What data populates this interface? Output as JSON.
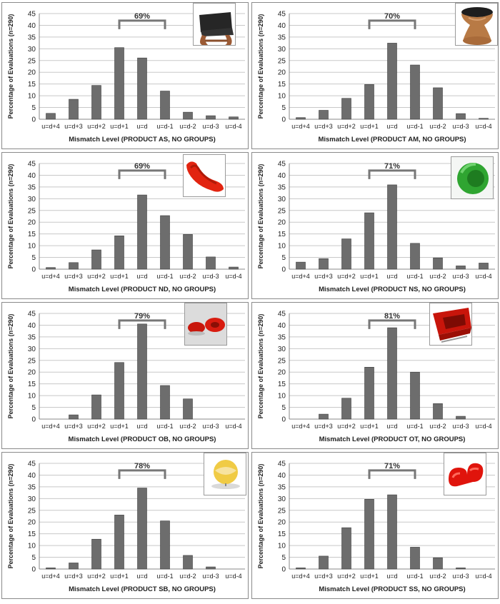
{
  "axis": {
    "ylabel": "Percentage of Evaluations (n=290)",
    "yticks": [
      0,
      5,
      10,
      15,
      20,
      25,
      30,
      35,
      40,
      45
    ],
    "ylim": [
      0,
      45
    ]
  },
  "bar_color": "#6d6d6d",
  "chart_data": [
    {
      "type": "bar",
      "categories": [
        "u=d+4",
        "u=d+3",
        "u=d+2",
        "u=d+1",
        "u=d",
        "u=d-1",
        "u=d-2",
        "u=d-3",
        "u=d-4"
      ],
      "values": [
        2.5,
        8.5,
        14.4,
        30.5,
        26.1,
        12.0,
        3.0,
        1.5,
        1.0
      ],
      "annotation": "69%",
      "xlabel": "Mismatch Level (PRODUCT AS, NO GROUPS)",
      "ylabel": "Percentage of Evaluations (n=290)",
      "ylim": [
        0,
        45
      ],
      "grid": true,
      "product_icon": "wooden-lounge-chair-icon"
    },
    {
      "type": "bar",
      "categories": [
        "u=d+4",
        "u=d+3",
        "u=d+2",
        "u=d+1",
        "u=d",
        "u=d-1",
        "u=d-2",
        "u=d-3",
        "u=d-4"
      ],
      "values": [
        0.7,
        3.8,
        8.9,
        14.8,
        32.4,
        23.1,
        13.4,
        2.4,
        0.4
      ],
      "annotation": "70%",
      "xlabel": "Mismatch Level (PRODUCT AM, NO GROUPS)",
      "ylabel": "Percentage of Evaluations (n=290)",
      "ylim": [
        0,
        45
      ],
      "grid": true,
      "product_icon": "wooden-stool-icon"
    },
    {
      "type": "bar",
      "categories": [
        "u=d+4",
        "u=d+3",
        "u=d+2",
        "u=d+1",
        "u=d",
        "u=d-1",
        "u=d-2",
        "u=d-3",
        "u=d-4"
      ],
      "values": [
        0.7,
        2.8,
        8.2,
        14.2,
        31.6,
        22.8,
        14.8,
        5.2,
        0.9
      ],
      "annotation": "69%",
      "xlabel": "Mismatch Level (PRODUCT ND, NO GROUPS)",
      "ylabel": "Percentage of Evaluations (n=290)",
      "ylim": [
        0,
        45
      ],
      "grid": true,
      "product_icon": "red-lounge-chair-icon"
    },
    {
      "type": "bar",
      "categories": [
        "u=d+4",
        "u=d+3",
        "u=d+2",
        "u=d+1",
        "u=d",
        "u=d-1",
        "u=d-2",
        "u=d-3",
        "u=d-4"
      ],
      "values": [
        3.0,
        4.5,
        12.9,
        24.0,
        35.9,
        11.0,
        4.8,
        1.4,
        2.6
      ],
      "annotation": "71%",
      "xlabel": "Mismatch Level (PRODUCT NS, NO GROUPS)",
      "ylabel": "Percentage of Evaluations (n=290)",
      "ylim": [
        0,
        45
      ],
      "grid": true,
      "product_icon": "green-loop-chair-icon"
    },
    {
      "type": "bar",
      "categories": [
        "u=d+4",
        "u=d+3",
        "u=d+2",
        "u=d+1",
        "u=d",
        "u=d-1",
        "u=d-2",
        "u=d-3",
        "u=d-4"
      ],
      "values": [
        0,
        1.8,
        10.3,
        24.1,
        40.5,
        14.3,
        8.6,
        0,
        0
      ],
      "annotation": "79%",
      "xlabel": "Mismatch Level (PRODUCT OB, NO GROUPS)",
      "ylabel": "Percentage of Evaluations (n=290)",
      "ylim": [
        0,
        45
      ],
      "grid": true,
      "product_icon": "red-organic-seats-icon"
    },
    {
      "type": "bar",
      "categories": [
        "u=d+4",
        "u=d+3",
        "u=d+2",
        "u=d+1",
        "u=d",
        "u=d-1",
        "u=d-2",
        "u=d-3",
        "u=d-4"
      ],
      "values": [
        0,
        2.1,
        8.9,
        22.1,
        38.9,
        20.0,
        6.6,
        1.2,
        0
      ],
      "annotation": "81%",
      "xlabel": "Mismatch Level (PRODUCT OT, NO GROUPS)",
      "ylabel": "Percentage of Evaluations (n=290)",
      "ylim": [
        0,
        45
      ],
      "grid": true,
      "product_icon": "red-armchair-icon"
    },
    {
      "type": "bar",
      "categories": [
        "u=d+4",
        "u=d+3",
        "u=d+2",
        "u=d+1",
        "u=d",
        "u=d-1",
        "u=d-2",
        "u=d-3",
        "u=d-4"
      ],
      "values": [
        0.5,
        2.6,
        12.7,
        23.0,
        34.5,
        20.5,
        5.8,
        0.9,
        0
      ],
      "annotation": "78%",
      "xlabel": "Mismatch Level (PRODUCT SB, NO GROUPS)",
      "ylabel": "Percentage of Evaluations (n=290)",
      "ylim": [
        0,
        45
      ],
      "grid": true,
      "product_icon": "yellow-sphere-chair-icon"
    },
    {
      "type": "bar",
      "categories": [
        "u=d+4",
        "u=d+3",
        "u=d+2",
        "u=d+1",
        "u=d",
        "u=d-1",
        "u=d-2",
        "u=d-3",
        "u=d-4"
      ],
      "values": [
        0.5,
        5.5,
        17.6,
        29.7,
        31.6,
        9.3,
        4.8,
        0.5,
        0
      ],
      "annotation": "71%",
      "xlabel": "Mismatch Level (PRODUCT SS, NO GROUPS)",
      "ylabel": "Percentage of Evaluations (n=290)",
      "ylim": [
        0,
        45
      ],
      "grid": true,
      "product_icon": "red-wave-sofa-icon"
    }
  ]
}
